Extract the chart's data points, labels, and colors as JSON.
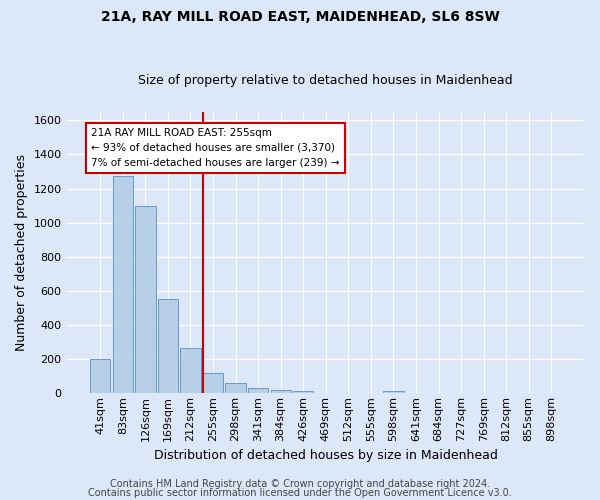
{
  "title1": "21A, RAY MILL ROAD EAST, MAIDENHEAD, SL6 8SW",
  "title2": "Size of property relative to detached houses in Maidenhead",
  "xlabel": "Distribution of detached houses by size in Maidenhead",
  "ylabel": "Number of detached properties",
  "categories": [
    "41sqm",
    "83sqm",
    "126sqm",
    "169sqm",
    "212sqm",
    "255sqm",
    "298sqm",
    "341sqm",
    "384sqm",
    "426sqm",
    "469sqm",
    "512sqm",
    "555sqm",
    "598sqm",
    "641sqm",
    "684sqm",
    "727sqm",
    "769sqm",
    "812sqm",
    "855sqm",
    "898sqm"
  ],
  "values": [
    200,
    1275,
    1100,
    555,
    265,
    120,
    60,
    33,
    22,
    15,
    0,
    0,
    0,
    15,
    0,
    0,
    0,
    0,
    0,
    0,
    0
  ],
  "bar_color": "#b8cfe8",
  "bar_edge_color": "#6699cc",
  "background_color": "#dce8f8",
  "grid_color": "#ffffff",
  "vline_color": "#cc0000",
  "annotation_box_color": "#cc0000",
  "annotation_bg": "#ffffff",
  "ylim": [
    0,
    1650
  ],
  "yticks": [
    0,
    200,
    400,
    600,
    800,
    1000,
    1200,
    1400,
    1600
  ],
  "footer1": "Contains HM Land Registry data © Crown copyright and database right 2024.",
  "footer2": "Contains public sector information licensed under the Open Government Licence v3.0.",
  "title1_fontsize": 10,
  "title2_fontsize": 9,
  "ylabel_fontsize": 9,
  "xlabel_fontsize": 9,
  "tick_fontsize": 8,
  "footer_fontsize": 7,
  "annotation_fontsize": 7.5
}
